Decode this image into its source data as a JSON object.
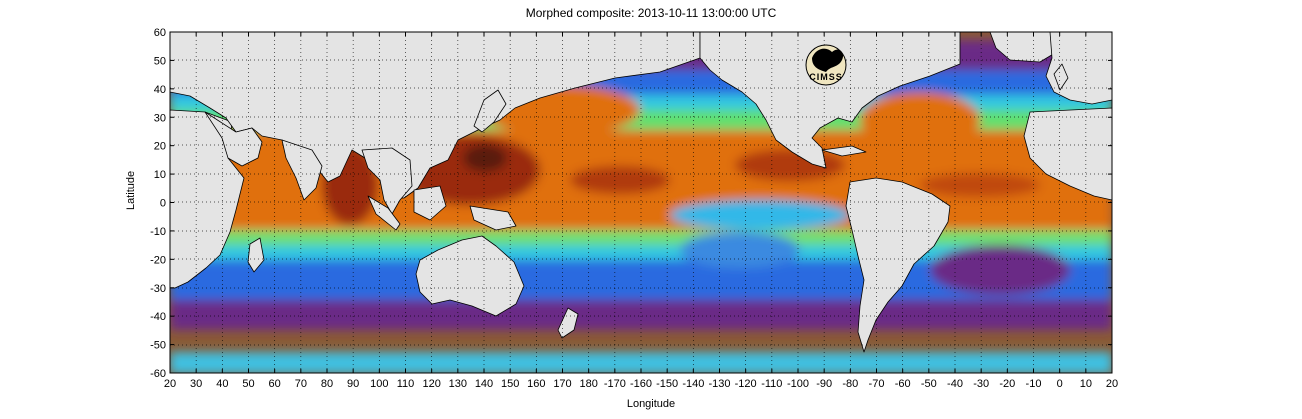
{
  "title": "Morphed composite: 2013-10-11 13:00:00 UTC",
  "xlabel": "Longitude",
  "ylabel": "Latitude",
  "logo_text": "CIMSS",
  "colors": {
    "background": "#ffffff",
    "land": "#e4e4e4",
    "coast": "#000000",
    "dry": "#8a5a36",
    "purple": "#6a2a86",
    "violet": "#5a3cc8",
    "blue": "#1f7fe0",
    "cyan": "#30d0e0",
    "green": "#60e070",
    "yellow": "#e0e070",
    "orange": "#e07010",
    "deep": "#9a2a10",
    "darkest": "#5a1a0c"
  },
  "map": {
    "lat_ticks": [
      "60",
      "50",
      "40",
      "30",
      "20",
      "10",
      "0",
      "-10",
      "-20",
      "-30",
      "-40",
      "-50",
      "-60"
    ],
    "lon_ticks": [
      "20",
      "30",
      "40",
      "50",
      "60",
      "70",
      "80",
      "90",
      "100",
      "110",
      "120",
      "130",
      "140",
      "150",
      "160",
      "170",
      "180",
      "-170",
      "-160",
      "-150",
      "-140",
      "-130",
      "-120",
      "-110",
      "-100",
      "-90",
      "-80",
      "-70",
      "-60",
      "-50",
      "-40",
      "-30",
      "-20",
      "-10",
      "0",
      "10",
      "20"
    ],
    "lat_range": [
      -60,
      60
    ],
    "lon_range": [
      20,
      380
    ],
    "grid": "dotted"
  }
}
